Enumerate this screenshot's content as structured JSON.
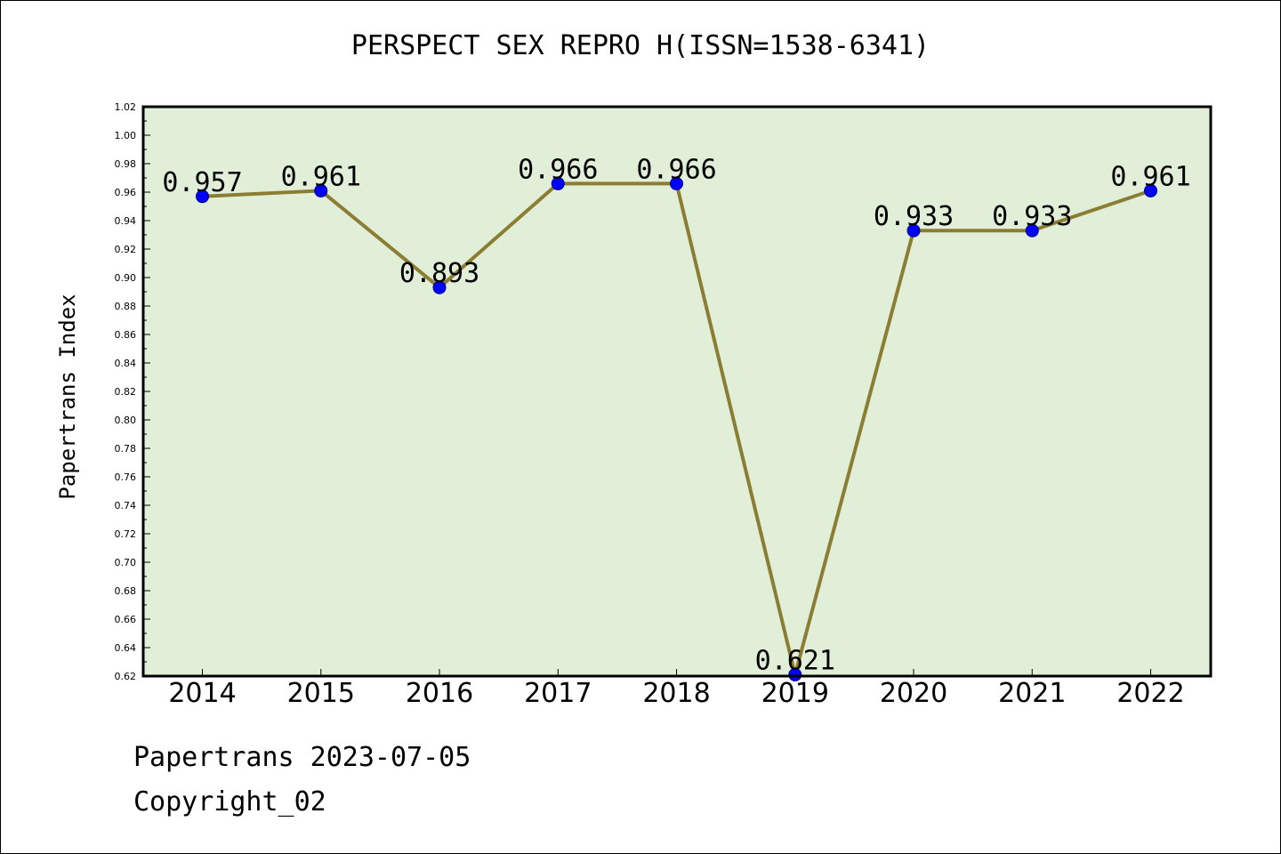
{
  "chart_data": {
    "type": "line",
    "title": "PERSPECT SEX REPRO H(ISSN=1538-6341)",
    "xlabel": "",
    "ylabel": "Papertrans Index",
    "categories": [
      "2014",
      "2015",
      "2016",
      "2017",
      "2018",
      "2019",
      "2020",
      "2021",
      "2022"
    ],
    "series": [
      {
        "values": [
          0.957,
          0.961,
          0.893,
          0.966,
          0.966,
          0.621,
          0.933,
          0.933,
          0.961
        ],
        "labels": [
          "0.957",
          "0.961",
          "0.893",
          "0.966",
          "0.966",
          "0.621",
          "0.933",
          "0.933",
          "0.961"
        ]
      }
    ],
    "ylim": [
      0.62,
      1.02
    ],
    "yticks": [
      "0.62",
      "0.64",
      "0.66",
      "0.68",
      "0.70",
      "0.72",
      "0.74",
      "0.76",
      "0.78",
      "0.80",
      "0.82",
      "0.84",
      "0.86",
      "0.88",
      "0.90",
      "0.92",
      "0.94",
      "0.96",
      "0.98",
      "1.00",
      "1.02"
    ],
    "grid": false,
    "colors": {
      "plot_background": "#e2efd8",
      "line": "#8b7d32",
      "marker": "#0000ff",
      "axis": "#000000"
    }
  },
  "footer": {
    "line1": "Papertrans 2023-07-05",
    "line2": "Copyright_02"
  }
}
